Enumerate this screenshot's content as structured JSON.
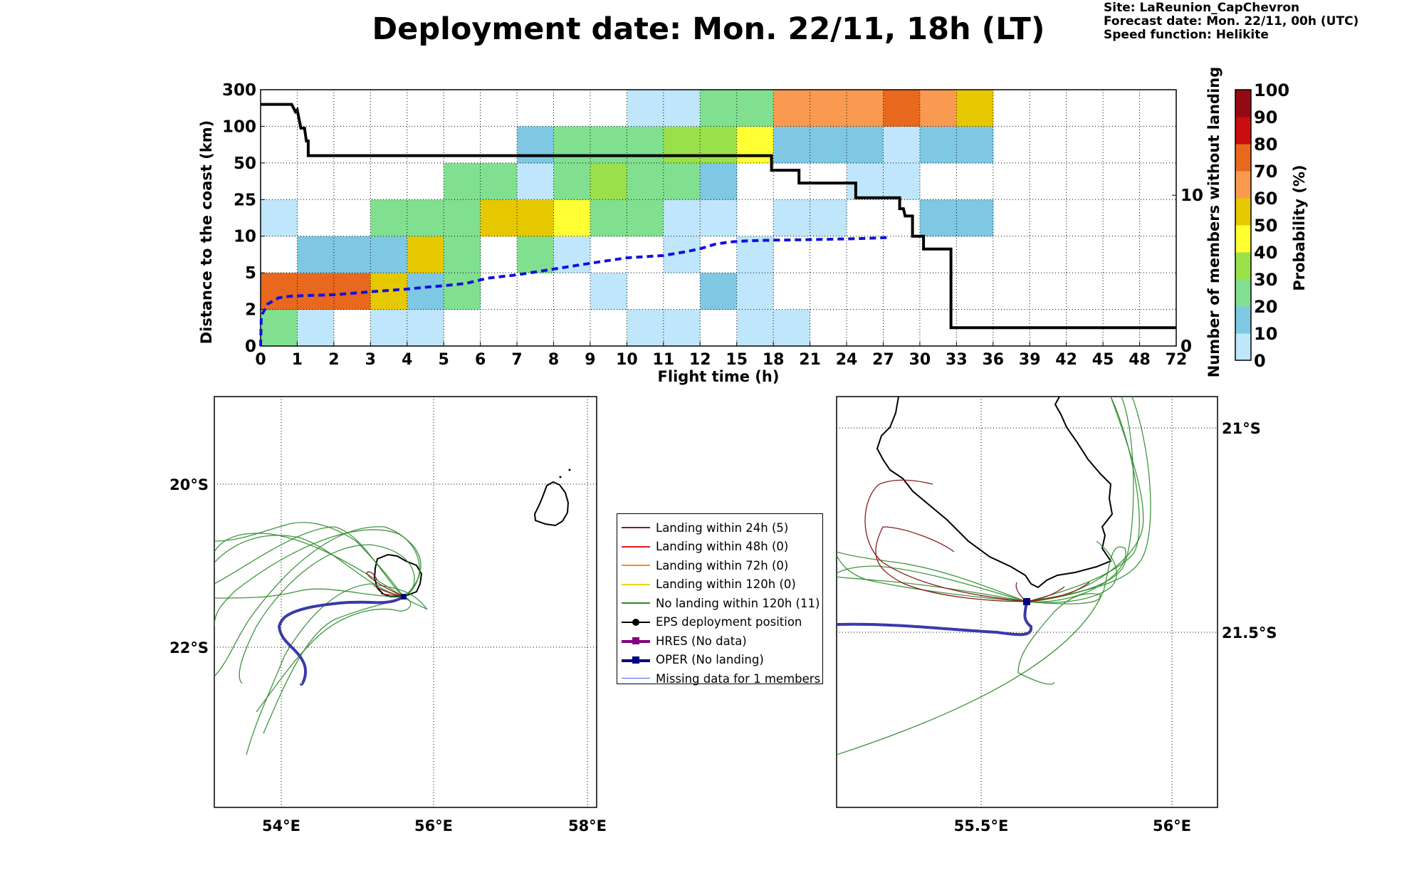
{
  "header": {
    "title": "Deployment date: Mon. 22/11, 18h (LT)",
    "site": "Site: LaReunion_CapChevron",
    "forecast": "Forecast date: Mon. 22/11, 00h (UTC)",
    "speed": "Speed function: Helikite"
  },
  "chart_data": [
    {
      "type": "heatmap",
      "xlabel": "Flight time (h)",
      "ylabel": "Distance to the coast (km)",
      "ylabel_right": "Number of members without landing",
      "colorbar_label": "Probability (%)",
      "x_ticks": [
        "0",
        "1",
        "2",
        "3",
        "4",
        "5",
        "6",
        "7",
        "8",
        "9",
        "10",
        "11",
        "12",
        "15",
        "18",
        "21",
        "24",
        "27",
        "30",
        "33",
        "36",
        "39",
        "42",
        "45",
        "48",
        "72"
      ],
      "y_ticks": [
        "0",
        "2",
        "5",
        "10",
        "25",
        "50",
        "100",
        "300"
      ],
      "y2_ticks": [
        "0",
        "10"
      ],
      "y2_range": [
        0,
        17
      ],
      "colorbar": {
        "ticks": [
          "0",
          "10",
          "20",
          "30",
          "40",
          "50",
          "60",
          "70",
          "80",
          "90",
          "100"
        ],
        "colors": [
          "#bfe6fa",
          "#7ec8e3",
          "#80e090",
          "#9ae04a",
          "#ffff33",
          "#e6c800",
          "#fa9a50",
          "#e8681e",
          "#c80e0e",
          "#940a14",
          "#640a1e"
        ]
      },
      "bins": [
        {
          "t": 0,
          "d": 0,
          "p": 20
        },
        {
          "t": 0,
          "d": 1,
          "p": 70
        },
        {
          "t": 0,
          "d": 3,
          "p": 0
        },
        {
          "t": 1,
          "d": 0,
          "p": 0
        },
        {
          "t": 1,
          "d": 1,
          "p": 70
        },
        {
          "t": 1,
          "d": 2,
          "p": 10
        },
        {
          "t": 2,
          "d": 1,
          "p": 70
        },
        {
          "t": 2,
          "d": 2,
          "p": 10
        },
        {
          "t": 3,
          "d": 0,
          "p": 0
        },
        {
          "t": 3,
          "d": 1,
          "p": 50
        },
        {
          "t": 3,
          "d": 2,
          "p": 10
        },
        {
          "t": 3,
          "d": 3,
          "p": 20
        },
        {
          "t": 4,
          "d": 0,
          "p": 0
        },
        {
          "t": 4,
          "d": 1,
          "p": 10
        },
        {
          "t": 4,
          "d": 2,
          "p": 50
        },
        {
          "t": 4,
          "d": 3,
          "p": 20
        },
        {
          "t": 5,
          "d": 1,
          "p": 20
        },
        {
          "t": 5,
          "d": 2,
          "p": 20
        },
        {
          "t": 5,
          "d": 3,
          "p": 20
        },
        {
          "t": 5,
          "d": 4,
          "p": 20
        },
        {
          "t": 6,
          "d": 3,
          "p": 50
        },
        {
          "t": 6,
          "d": 4,
          "p": 20
        },
        {
          "t": 7,
          "d": 2,
          "p": 20
        },
        {
          "t": 7,
          "d": 3,
          "p": 50
        },
        {
          "t": 7,
          "d": 4,
          "p": 0
        },
        {
          "t": 7,
          "d": 5,
          "p": 10
        },
        {
          "t": 8,
          "d": 2,
          "p": 0
        },
        {
          "t": 8,
          "d": 3,
          "p": 40
        },
        {
          "t": 8,
          "d": 4,
          "p": 20
        },
        {
          "t": 8,
          "d": 5,
          "p": 20
        },
        {
          "t": 9,
          "d": 1,
          "p": 0
        },
        {
          "t": 9,
          "d": 3,
          "p": 20
        },
        {
          "t": 9,
          "d": 4,
          "p": 30
        },
        {
          "t": 9,
          "d": 5,
          "p": 20
        },
        {
          "t": 10,
          "d": 0,
          "p": 0
        },
        {
          "t": 10,
          "d": 3,
          "p": 20
        },
        {
          "t": 10,
          "d": 4,
          "p": 20
        },
        {
          "t": 10,
          "d": 5,
          "p": 20
        },
        {
          "t": 10,
          "d": 6,
          "p": 0
        },
        {
          "t": 11,
          "d": 0,
          "p": 0
        },
        {
          "t": 11,
          "d": 2,
          "p": 0
        },
        {
          "t": 11,
          "d": 3,
          "p": 0
        },
        {
          "t": 11,
          "d": 4,
          "p": 20
        },
        {
          "t": 11,
          "d": 5,
          "p": 30
        },
        {
          "t": 11,
          "d": 6,
          "p": 0
        },
        {
          "t": 12,
          "d": 1,
          "p": 10
        },
        {
          "t": 12,
          "d": 3,
          "p": 0
        },
        {
          "t": 12,
          "d": 4,
          "p": 10
        },
        {
          "t": 12,
          "d": 5,
          "p": 30
        },
        {
          "t": 12,
          "d": 6,
          "p": 20
        },
        {
          "t": 13,
          "d": 0,
          "p": 0
        },
        {
          "t": 13,
          "d": 1,
          "p": 0
        },
        {
          "t": 13,
          "d": 2,
          "p": 0
        },
        {
          "t": 13,
          "d": 5,
          "p": 40
        },
        {
          "t": 13,
          "d": 6,
          "p": 20
        },
        {
          "t": 14,
          "d": 0,
          "p": 0
        },
        {
          "t": 14,
          "d": 3,
          "p": 0
        },
        {
          "t": 14,
          "d": 5,
          "p": 10
        },
        {
          "t": 14,
          "d": 6,
          "p": 60
        },
        {
          "t": 15,
          "d": 3,
          "p": 0
        },
        {
          "t": 15,
          "d": 5,
          "p": 10
        },
        {
          "t": 15,
          "d": 6,
          "p": 60
        },
        {
          "t": 16,
          "d": 4,
          "p": 0
        },
        {
          "t": 16,
          "d": 5,
          "p": 10
        },
        {
          "t": 16,
          "d": 6,
          "p": 60
        },
        {
          "t": 17,
          "d": 4,
          "p": 0
        },
        {
          "t": 17,
          "d": 5,
          "p": 0
        },
        {
          "t": 17,
          "d": 6,
          "p": 70
        },
        {
          "t": 18,
          "d": 3,
          "p": 10
        },
        {
          "t": 18,
          "d": 5,
          "p": 10
        },
        {
          "t": 18,
          "d": 6,
          "p": 60
        },
        {
          "t": 19,
          "d": 3,
          "p": 10
        },
        {
          "t": 19,
          "d": 5,
          "p": 10
        },
        {
          "t": 19,
          "d": 6,
          "p": 50
        }
      ],
      "median_distance_black": [
        [
          0,
          6.6
        ],
        [
          0.85,
          6.6
        ],
        [
          0.95,
          6.4
        ],
        [
          1.0,
          6.45
        ],
        [
          1.1,
          5.95
        ],
        [
          1.2,
          5.95
        ],
        [
          1.25,
          5.6
        ],
        [
          1.3,
          5.6
        ],
        [
          1.3,
          5.2
        ],
        [
          13.95,
          5.2
        ],
        [
          13.95,
          4.8
        ],
        [
          14.7,
          4.8
        ],
        [
          14.7,
          4.45
        ],
        [
          16.25,
          4.45
        ],
        [
          16.25,
          4.05
        ],
        [
          17.45,
          4.05
        ],
        [
          17.45,
          3.75
        ],
        [
          17.55,
          3.75
        ],
        [
          17.6,
          3.55
        ],
        [
          17.8,
          3.55
        ],
        [
          17.8,
          3.0
        ],
        [
          18.1,
          3.0
        ],
        [
          18.1,
          2.65
        ],
        [
          18.85,
          2.65
        ],
        [
          18.85,
          0.5
        ],
        [
          25,
          0.5
        ]
      ],
      "members_without_landing_blue": [
        [
          0,
          0
        ],
        [
          0.02,
          2
        ],
        [
          0.2,
          2.8
        ],
        [
          0.5,
          3.2
        ],
        [
          0.8,
          3.3
        ],
        [
          1.2,
          3.35
        ],
        [
          2,
          3.4
        ],
        [
          3,
          3.6
        ],
        [
          4,
          3.78
        ],
        [
          4.5,
          3.9
        ],
        [
          5,
          4.0
        ],
        [
          5.6,
          4.15
        ],
        [
          6.2,
          4.5
        ],
        [
          7,
          4.72
        ],
        [
          7.6,
          4.95
        ],
        [
          8.5,
          5.3
        ],
        [
          9.3,
          5.6
        ],
        [
          10,
          5.85
        ],
        [
          11,
          6.0
        ],
        [
          11.6,
          6.25
        ],
        [
          12,
          6.45
        ],
        [
          12.4,
          6.75
        ],
        [
          12.8,
          6.9
        ],
        [
          13.3,
          6.98
        ],
        [
          14,
          7.02
        ],
        [
          15.3,
          7.07
        ],
        [
          16.3,
          7.12
        ],
        [
          17.2,
          7.2
        ]
      ]
    },
    {
      "type": "map",
      "x_ticks": [
        "54°E",
        "56°E",
        "58°E"
      ],
      "y_ticks": [
        "20°S",
        "22°S"
      ]
    },
    {
      "type": "map",
      "x_ticks": [
        "55.5°E",
        "56°E"
      ],
      "y_ticks": [
        "21°S",
        "21.5°S"
      ]
    }
  ],
  "legend": {
    "items": [
      {
        "label": "Landing within 24h (5)",
        "color": "#8b1a1a",
        "marker": "none",
        "lw": 2
      },
      {
        "label": "Landing within 48h (0)",
        "color": "#e81b1b",
        "marker": "none",
        "lw": 2
      },
      {
        "label": "Landing within 72h (0)",
        "color": "#ff8c1a",
        "marker": "none",
        "lw": 2
      },
      {
        "label": "Landing within 120h (0)",
        "color": "#e8d21a",
        "marker": "none",
        "lw": 2
      },
      {
        "label": "No landing within 120h (11)",
        "color": "#2b8a2b",
        "marker": "none",
        "lw": 2
      },
      {
        "label": "EPS deployment position",
        "color": "#000000",
        "marker": "circle",
        "lw": 2
      },
      {
        "label": "HRES (No data)",
        "color": "#800080",
        "marker": "square",
        "lw": 4
      },
      {
        "label": "OPER (No landing)",
        "color": "#000080",
        "marker": "square",
        "lw": 4
      },
      {
        "label": "Missing data for 1 members",
        "color": "#4a64e0",
        "marker": "none",
        "lw": 1.5
      }
    ]
  }
}
